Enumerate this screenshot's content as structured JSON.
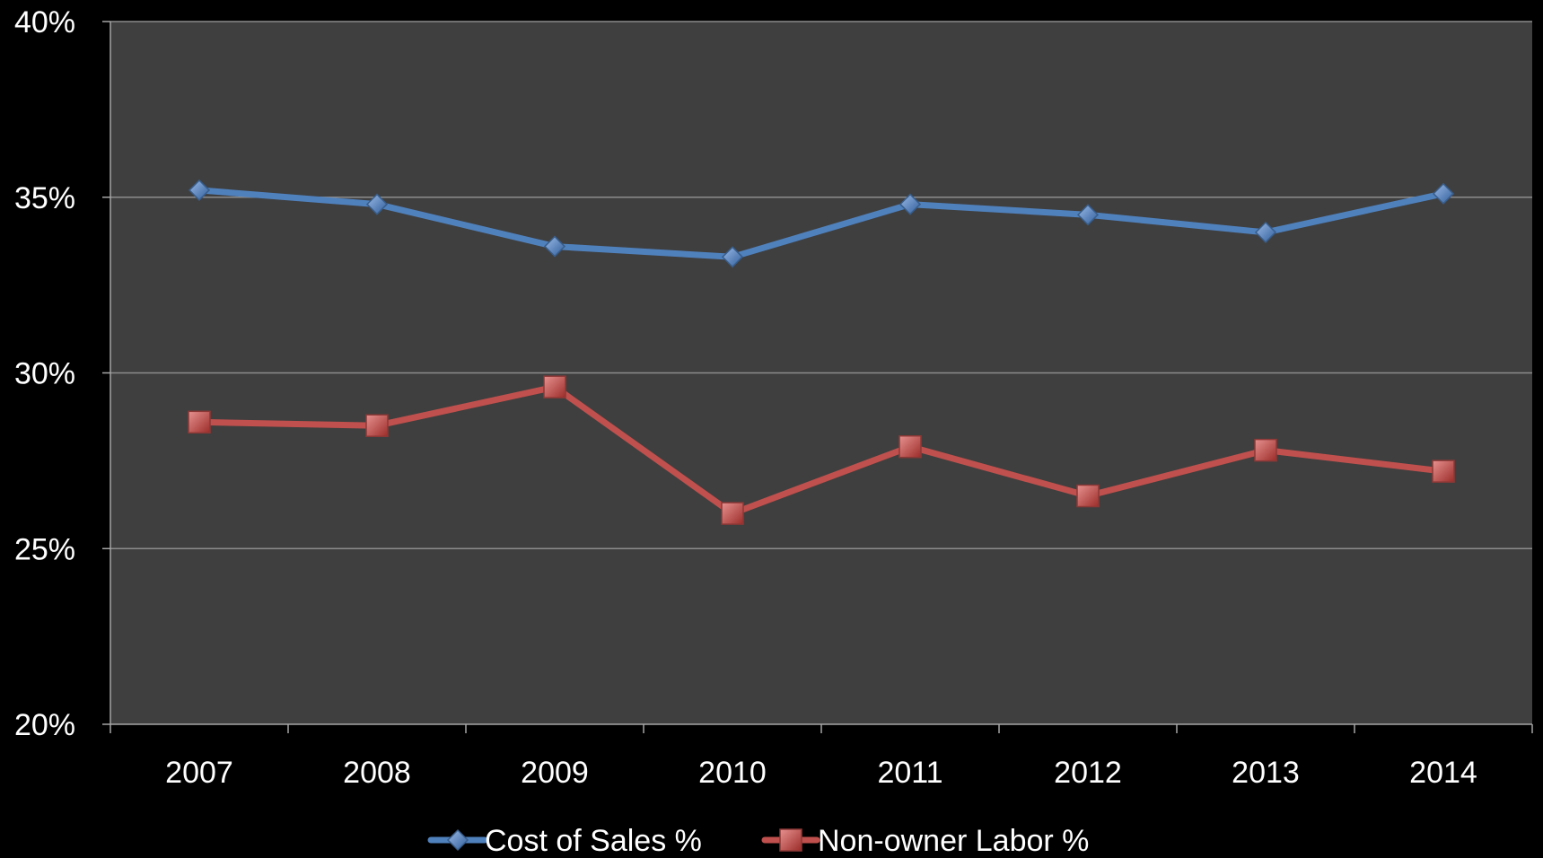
{
  "chart_data": {
    "type": "line",
    "title": "",
    "xlabel": "",
    "ylabel": "",
    "categories": [
      "2007",
      "2008",
      "2009",
      "2010",
      "2011",
      "2012",
      "2013",
      "2014"
    ],
    "ylim": [
      20,
      40
    ],
    "yticks": [
      20,
      25,
      30,
      35,
      40
    ],
    "ytick_labels": [
      "20%",
      "25%",
      "30%",
      "35%",
      "40%"
    ],
    "grid": true,
    "legend_position": "bottom",
    "series": [
      {
        "name": "Cost of Sales %",
        "values": [
          35.2,
          34.8,
          33.6,
          33.3,
          34.8,
          34.5,
          34.0,
          35.1
        ],
        "color": "#4f81bd",
        "marker": "diamond"
      },
      {
        "name": "Non-owner Labor %",
        "values": [
          28.6,
          28.5,
          29.6,
          26.0,
          27.9,
          26.5,
          27.8,
          27.2
        ],
        "color": "#c0504d",
        "marker": "square"
      }
    ],
    "colors": {
      "page_background": "#000000",
      "plot_background": "#3f3f3f",
      "gridline": "#8c8c8c",
      "axis": "#a6a6a6",
      "text": "#ffffff"
    }
  }
}
